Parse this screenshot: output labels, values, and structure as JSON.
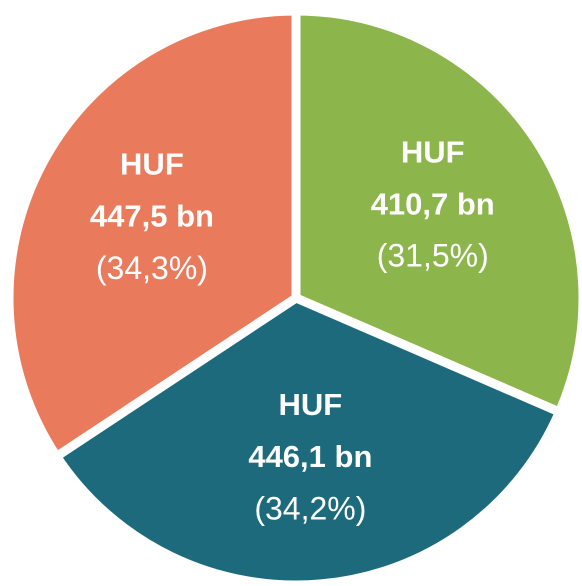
{
  "chart_data": {
    "type": "pie",
    "categories": [
      "HUF",
      "HUF",
      "HUF"
    ],
    "amount_labels": [
      "410,7 bn",
      "446,1 bn",
      "447,5 bn"
    ],
    "values": [
      31.5,
      34.2,
      34.3
    ],
    "value_labels": [
      "(31,5%)",
      "(34,2%)",
      "(34,3%)"
    ],
    "colors": [
      "#8cb54b",
      "#1c6a7c",
      "#e97a5b"
    ],
    "start_angle": 0,
    "direction": "clockwise"
  }
}
